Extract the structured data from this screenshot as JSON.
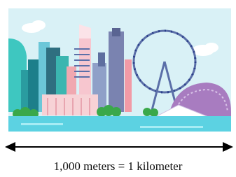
{
  "caption": "1,000 meters = 1 kilometer"
}
